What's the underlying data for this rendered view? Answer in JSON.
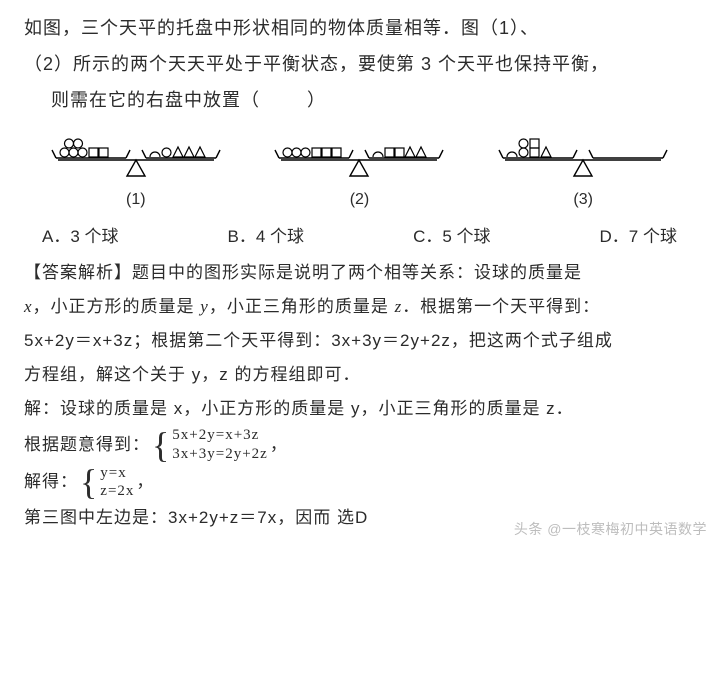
{
  "problem": {
    "line1": "如图，三个天平的托盘中形状相同的物体质量相等．图（1）、",
    "line2": "（2）所示的两个天天平处于平衡状态，要使第 3 个天平也保持平衡，",
    "line3": "则需在它的右盘中放置（",
    "line3_close": "）"
  },
  "scales": {
    "stroke": "#000000",
    "fill_bg": "#ffffff",
    "items": [
      {
        "label": "(1)",
        "left": {
          "circles": 5,
          "squares": 2,
          "triangles": 0,
          "arc": false
        },
        "right": {
          "circles": 1,
          "squares": 0,
          "triangles": 3,
          "arc": true
        }
      },
      {
        "label": "(2)",
        "left": {
          "circles": 3,
          "squares": 3,
          "triangles": 0,
          "arc": false
        },
        "right": {
          "circles": 0,
          "squares": 2,
          "triangles": 2,
          "arc": true
        }
      },
      {
        "label": "(3)",
        "left": {
          "circles": 2,
          "squares": 1,
          "triangles": 1,
          "arc": true,
          "stacked_pair": true
        },
        "right": {
          "circles": 0,
          "squares": 0,
          "triangles": 0,
          "arc": false
        }
      }
    ]
  },
  "options": {
    "A": "A．3 个球",
    "B": "B．4 个球",
    "C": "C．5 个球",
    "D": "D．7 个球"
  },
  "solution": {
    "p1": "【答案解析】题目中的图形实际是说明了两个相等关系：设球的质量是",
    "p2_a": "x",
    "p2_b": "，小正方形的质量是 ",
    "p2_c": "y",
    "p2_d": "，小正三角形的质量是 ",
    "p2_e": "z",
    "p2_f": "．根据第一个天平得到：",
    "p3": "5x+2y＝x+3z；根据第二个天平得到：3x+3y＝2y+2z，把这两个式子组成",
    "p4": "方程组，解这个关于 y，z 的方程组即可．",
    "p5": "解：设球的质量是 x，小正方形的质量是 y，小正三角形的质量是 z．",
    "p6_lead": "根据题意得到：",
    "system1": {
      "row1": "5x+2y=x+3z",
      "row2": "3x+3y=2y+2z"
    },
    "p6_tail": "，",
    "p7_lead": "解得：",
    "system2": {
      "row1": "y=x",
      "row2": "z=2x"
    },
    "p7_tail": "，",
    "p8": "第三图中左边是：3x+2y+z＝7x，因而 选D"
  },
  "watermark": "头条 @一枝寒梅初中英语数学"
}
